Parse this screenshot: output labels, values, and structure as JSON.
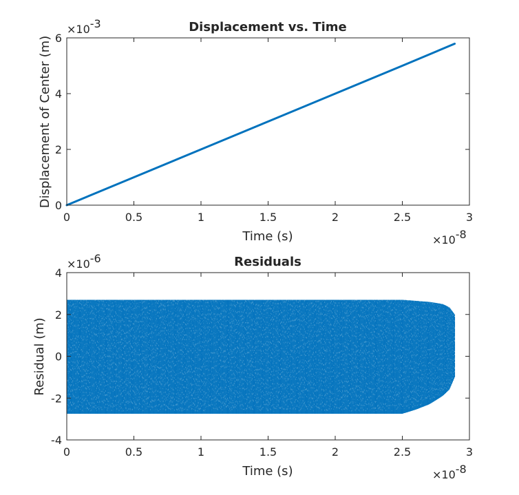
{
  "chart_data": [
    {
      "type": "line",
      "title": "Displacement vs. Time",
      "xlabel": "Time (s)",
      "ylabel": "Displacement of Center (m)",
      "xlim": [
        0,
        3
      ],
      "ylim": [
        0,
        6
      ],
      "x_exponent_label": "×10",
      "x_exponent": "-8",
      "y_exponent_label": "×10",
      "y_exponent": "-3",
      "x_ticks": [
        "0",
        "0.5",
        "1",
        "1.5",
        "2",
        "2.5",
        "3"
      ],
      "y_ticks": [
        "0",
        "2",
        "4",
        "6"
      ],
      "grid": false,
      "color": "#0072BD",
      "series": [
        {
          "x": [
            0,
            0.5,
            1.0,
            1.5,
            2.0,
            2.5,
            2.89
          ],
          "y": [
            0,
            1.0,
            2.0,
            3.0,
            4.0,
            5.0,
            5.79
          ]
        }
      ]
    },
    {
      "type": "scatter",
      "title": "Residuals",
      "xlabel": "Time (s)",
      "ylabel": "Residual (m)",
      "xlim": [
        0,
        3
      ],
      "ylim": [
        -4,
        4
      ],
      "x_exponent_label": "×10",
      "x_exponent": "-8",
      "y_exponent_label": "×10",
      "y_exponent": "-6",
      "x_ticks": [
        "0",
        "0.5",
        "1",
        "1.5",
        "2",
        "2.5",
        "3"
      ],
      "y_ticks": [
        "-4",
        "-2",
        "0",
        "2",
        "4"
      ],
      "grid": false,
      "color": "#0072BD",
      "envelope": {
        "x": [
          0,
          2.5,
          2.6,
          2.7,
          2.8,
          2.85,
          2.89
        ],
        "upper": [
          2.7,
          2.7,
          2.65,
          2.6,
          2.5,
          2.35,
          2.0
        ],
        "lower": [
          -2.75,
          -2.75,
          -2.55,
          -2.3,
          -1.9,
          -1.6,
          -1.0
        ]
      }
    }
  ]
}
